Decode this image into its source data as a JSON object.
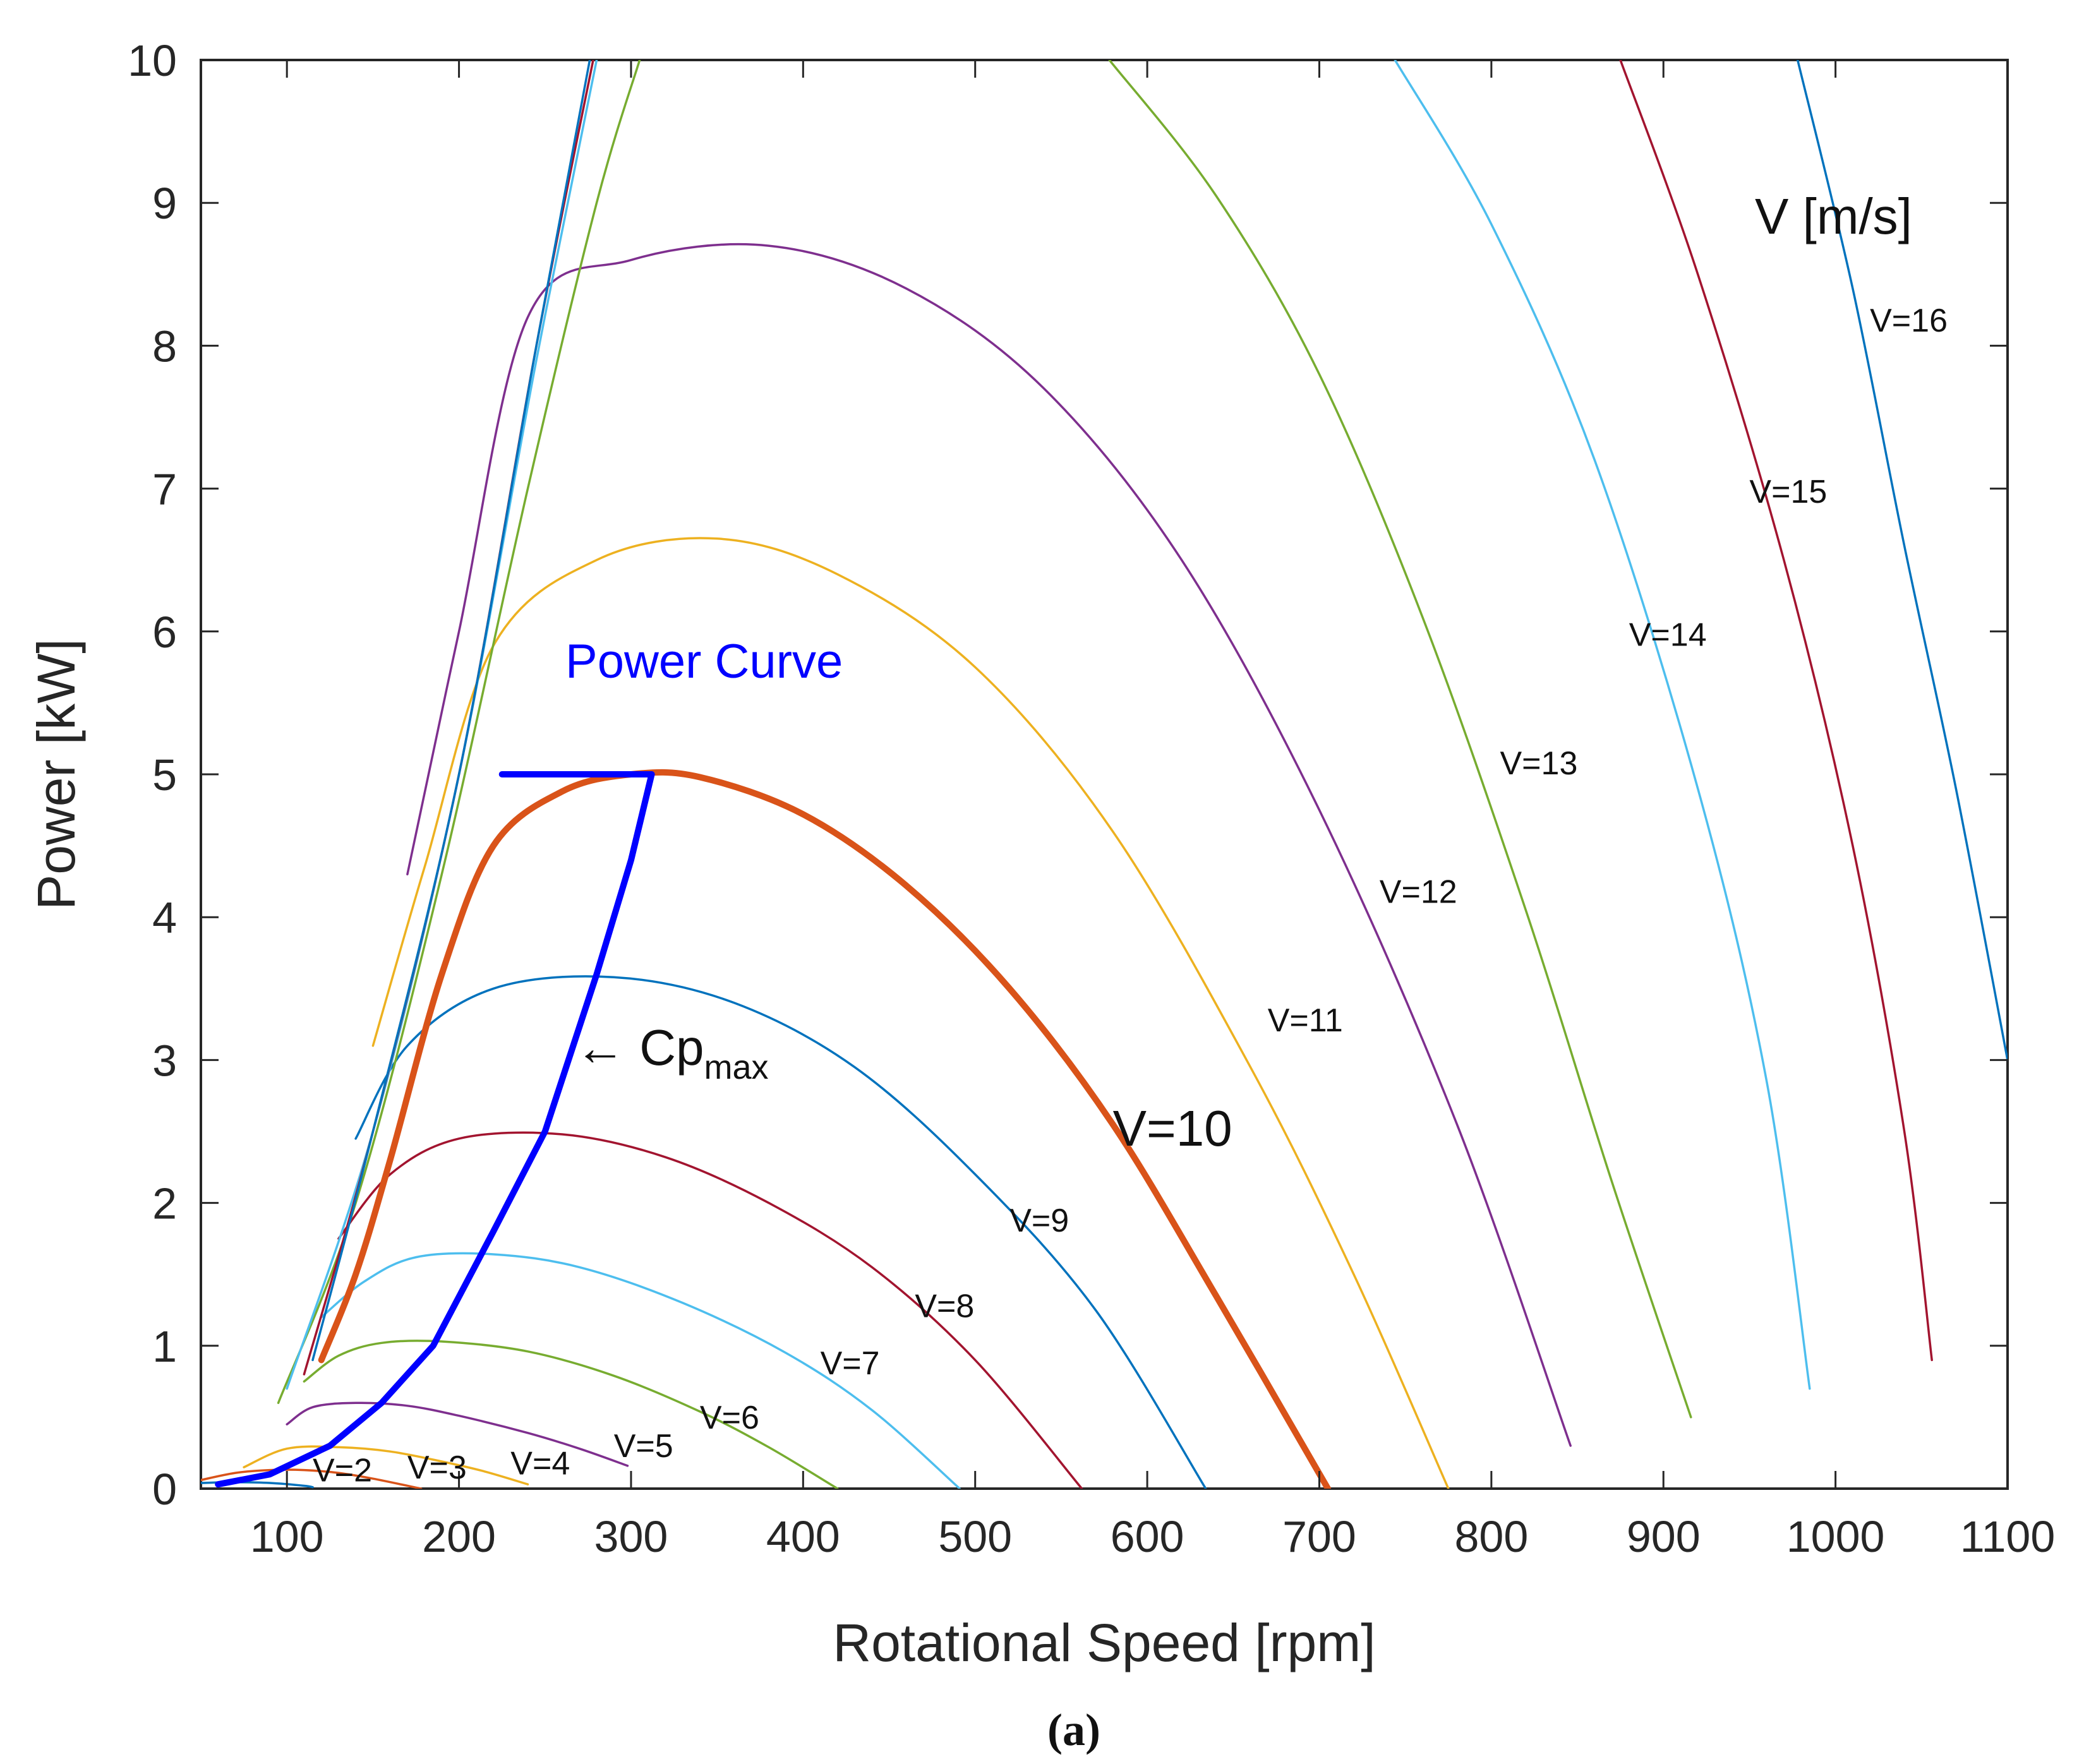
{
  "chart_data": {
    "type": "line",
    "title": "",
    "xlabel": "Rotational Speed [rpm]",
    "ylabel": "Power [kW]",
    "xlim": [
      50,
      1100
    ],
    "ylim": [
      0,
      10
    ],
    "xticks": [
      100,
      200,
      300,
      400,
      500,
      600,
      700,
      800,
      900,
      1000,
      1100
    ],
    "yticks": [
      0,
      1,
      2,
      3,
      4,
      5,
      6,
      7,
      8,
      9,
      10
    ],
    "grid": false,
    "legend_title": "V [m/s]",
    "caption": "(a)",
    "series": [
      {
        "name": "V=2",
        "label": "V=2",
        "speed_ms": 2,
        "color": "#0072bd",
        "label_at": [
          115,
          0.05
        ],
        "x": [
          50,
          70,
          90,
          110,
          115
        ],
        "y": [
          0.04,
          0.045,
          0.04,
          0.02,
          0.01
        ]
      },
      {
        "name": "V=3",
        "label": "V=3",
        "speed_ms": 3,
        "color": "#d95319",
        "label_at": [
          170,
          0.07
        ],
        "x": [
          50,
          70,
          90,
          110,
          130,
          150,
          178
        ],
        "y": [
          0.06,
          0.11,
          0.13,
          0.13,
          0.11,
          0.07,
          0.0
        ]
      },
      {
        "name": "V=4",
        "label": "V=4",
        "speed_ms": 4,
        "color": "#edb120",
        "label_at": [
          230,
          0.1
        ],
        "x": [
          75,
          100,
          130,
          160,
          190,
          215,
          240
        ],
        "y": [
          0.15,
          0.28,
          0.29,
          0.26,
          0.19,
          0.12,
          0.03
        ]
      },
      {
        "name": "V=5",
        "label": "V=5",
        "speed_ms": 5,
        "color": "#7e2f8e",
        "label_at": [
          290,
          0.22
        ],
        "x": [
          100,
          115,
          140,
          170,
          200,
          240,
          270,
          298
        ],
        "y": [
          0.45,
          0.57,
          0.6,
          0.58,
          0.51,
          0.39,
          0.28,
          0.16
        ]
      },
      {
        "name": "V=6",
        "label": "V=6",
        "speed_ms": 6,
        "color": "#77ac30",
        "label_at": [
          340,
          0.42
        ],
        "x": [
          110,
          130,
          155,
          190,
          240,
          290,
          340,
          380,
          420
        ],
        "y": [
          0.75,
          0.93,
          1.02,
          1.03,
          0.96,
          0.79,
          0.54,
          0.29,
          0.0
        ]
      },
      {
        "name": "V=7",
        "label": "V=7",
        "speed_ms": 7,
        "color": "#4dbeee",
        "label_at": [
          410,
          0.8
        ],
        "x": [
          120,
          145,
          175,
          220,
          270,
          330,
          390,
          440,
          491
        ],
        "y": [
          1.2,
          1.45,
          1.62,
          1.64,
          1.55,
          1.3,
          0.95,
          0.55,
          0.0
        ]
      },
      {
        "name": "V=8",
        "label": "V=8",
        "speed_ms": 8,
        "color": "#a2142f",
        "label_at": [
          465,
          1.2
        ],
        "x": [
          130,
          160,
          200,
          260,
          320,
          380,
          440,
          500,
          562
        ],
        "y": [
          1.75,
          2.2,
          2.45,
          2.48,
          2.32,
          2.0,
          1.55,
          0.9,
          0.0
        ]
      },
      {
        "name": "V=9",
        "label": "V=9",
        "speed_ms": 9,
        "color": "#0072bd",
        "label_at": [
          520,
          1.8
        ],
        "x": [
          140,
          170,
          220,
          290,
          360,
          430,
          500,
          570,
          634
        ],
        "y": [
          2.45,
          3.1,
          3.5,
          3.58,
          3.4,
          2.95,
          2.2,
          1.25,
          0.0
        ]
      },
      {
        "name": "V=10",
        "label": "V=10",
        "speed_ms": 10,
        "color": "#d95319",
        "label_at": [
          580,
          2.4
        ],
        "x": [
          120,
          140,
          160,
          190,
          220,
          260,
          300,
          340,
          400,
          460,
          520,
          580,
          640,
          705
        ],
        "y": [
          0.9,
          1.5,
          2.3,
          3.6,
          4.5,
          4.88,
          5.0,
          4.98,
          4.72,
          4.22,
          3.5,
          2.55,
          1.35,
          0.0
        ],
        "emphasis": true
      },
      {
        "name": "V=11",
        "label": "V=11",
        "speed_ms": 11,
        "color": "#edb120",
        "label_at": [
          670,
          3.2
        ],
        "x": [
          150,
          180,
          220,
          280,
          350,
          420,
          500,
          580,
          660,
          720,
          775
        ],
        "y": [
          3.1,
          4.35,
          5.9,
          6.5,
          6.65,
          6.4,
          5.75,
          4.6,
          2.95,
          1.5,
          0.0
        ]
      },
      {
        "name": "V=12",
        "label": "V=12",
        "speed_ms": 12,
        "color": "#7e2f8e",
        "label_at": [
          735,
          4.1
        ],
        "x": [
          170,
          200,
          240,
          300,
          380,
          460,
          540,
          620,
          700,
          780,
          846
        ],
        "y": [
          4.3,
          6.0,
          8.2,
          8.6,
          8.7,
          8.4,
          7.7,
          6.5,
          4.75,
          2.55,
          0.3
        ]
      },
      {
        "name": "V=13",
        "label": "V=13",
        "speed_ms": 13,
        "color": "#77ac30",
        "label_at": [
          805,
          5.0
        ],
        "x": [
          95,
          140,
          190,
          240,
          280,
          305
        ],
        "y": [
          0.6,
          2.0,
          4.3,
          7.0,
          9.0,
          10.0
        ],
        "x2": [
          578,
          640,
          700,
          760,
          820,
          870,
          916
        ],
        "y2": [
          10.0,
          9.05,
          7.8,
          6.1,
          4.05,
          2.15,
          0.5
        ]
      },
      {
        "name": "V=14",
        "label": "V=14",
        "speed_ms": 14,
        "color": "#4dbeee",
        "label_at": [
          880,
          5.9
        ],
        "x": [
          100,
          150,
          200,
          245,
          280
        ],
        "y": [
          0.7,
          2.5,
          5.0,
          7.9,
          10.0
        ],
        "x2": [
          744,
          800,
          860,
          920,
          960,
          985
        ],
        "y2": [
          10.0,
          8.85,
          7.2,
          4.9,
          2.85,
          0.7
        ]
      },
      {
        "name": "V=15",
        "label": "V=15",
        "speed_ms": 15,
        "color": "#a2142f",
        "label_at": [
          950,
          6.9
        ],
        "x": [
          110,
          150,
          200,
          245,
          278
        ],
        "y": [
          0.8,
          2.5,
          5.0,
          8.0,
          10.0
        ],
        "x2": [
          875,
          920,
          970,
          1010,
          1040,
          1056
        ],
        "y2": [
          10.0,
          8.5,
          6.5,
          4.5,
          2.5,
          0.9
        ]
      },
      {
        "name": "V=16",
        "label": "V=16",
        "speed_ms": 16,
        "color": "#0072bd",
        "label_at": [
          1020,
          8.1
        ],
        "x": [
          115,
          150,
          200,
          245,
          276
        ],
        "y": [
          0.9,
          2.5,
          5.0,
          8.0,
          10.0
        ],
        "x2": [
          978,
          1010,
          1040,
          1070,
          1100
        ],
        "y2": [
          10.0,
          8.4,
          6.6,
          4.9,
          3.0
        ]
      }
    ],
    "power_curve": {
      "name": "Power Curve",
      "color": "#0000ff",
      "x": [
        60,
        90,
        125,
        155,
        185,
        220,
        250,
        280,
        300,
        312,
        225
      ],
      "y": [
        0.03,
        0.1,
        0.3,
        0.6,
        1.0,
        1.8,
        2.5,
        3.6,
        4.4,
        5.0,
        5.0
      ],
      "label_at": [
        272,
        5.65
      ]
    },
    "annotations": [
      {
        "text": "Power Curve",
        "at": [
          272,
          5.65
        ]
      },
      {
        "text": "← Cp",
        "subscript": "max",
        "at": [
          270,
          2.85
        ]
      },
      {
        "text": "V [m/s]",
        "at": [
          1001,
          8.9
        ]
      }
    ]
  },
  "labels": {
    "power_curve": "Power Curve",
    "cp_arrow": "← Cp",
    "cp_sub": "max",
    "legend_title": "V [m/s]",
    "caption": "(a)"
  }
}
